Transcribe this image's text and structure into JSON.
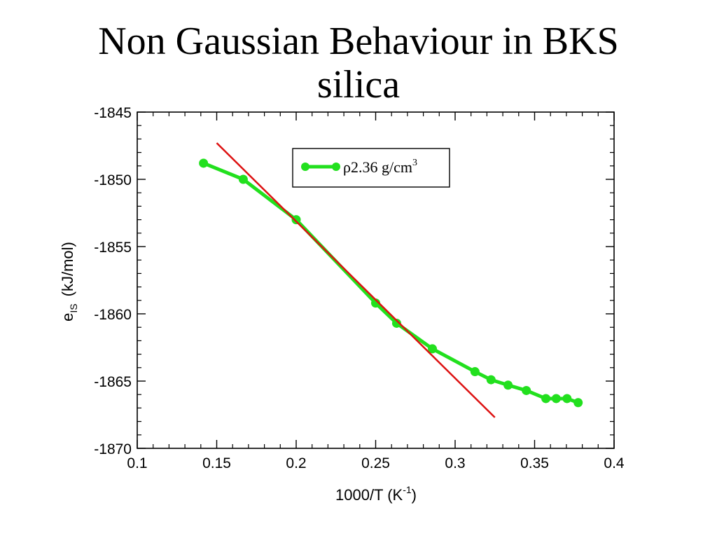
{
  "slide": {
    "title_line1": "Non Gaussian Behaviour in BKS",
    "title_line2": "silica"
  },
  "colors": {
    "series": "#22e01e",
    "fit_line": "#dd1111",
    "axes": "#000000"
  },
  "chart_data": {
    "type": "line",
    "title": "",
    "xlabel_main": "1000/T (K",
    "xlabel_sup": "-1",
    "xlabel_close": ")",
    "ylabel_e": "e",
    "ylabel_sub": "IS",
    "ylabel_unit": "(kJ/mol)",
    "xlim": [
      0.1,
      0.4
    ],
    "ylim": [
      -1870,
      -1845
    ],
    "x_ticks": [
      0.1,
      0.15,
      0.2,
      0.25,
      0.3,
      0.35,
      0.4
    ],
    "x_tick_labels": [
      "0.1",
      "0.15",
      "0.2",
      "0.25",
      "0.3",
      "0.35",
      "0.4"
    ],
    "y_ticks": [
      -1870,
      -1865,
      -1860,
      -1855,
      -1850,
      -1845
    ],
    "y_tick_labels": [
      "-1870",
      "-1865",
      "-1860",
      "-1855",
      "-1850",
      "-1845"
    ],
    "legend_position": "top-center",
    "series": [
      {
        "name_symbol": "ρ",
        "name_text": "2.36 g/cm",
        "name_sup": "3",
        "marker": "circle",
        "x": [
          0.1417,
          0.1667,
          0.2,
          0.25,
          0.2632,
          0.2857,
          0.3125,
          0.3226,
          0.3333,
          0.3448,
          0.3571,
          0.3636,
          0.3704,
          0.3774
        ],
        "y": [
          -1848.8,
          -1850.0,
          -1853.0,
          -1859.2,
          -1860.7,
          -1862.6,
          -1864.3,
          -1864.9,
          -1865.3,
          -1865.7,
          -1866.3,
          -1866.3,
          -1866.3,
          -1866.6
        ]
      }
    ],
    "fit_line": {
      "x": [
        0.15,
        0.325
      ],
      "y": [
        -1847.3,
        -1867.7
      ]
    }
  }
}
